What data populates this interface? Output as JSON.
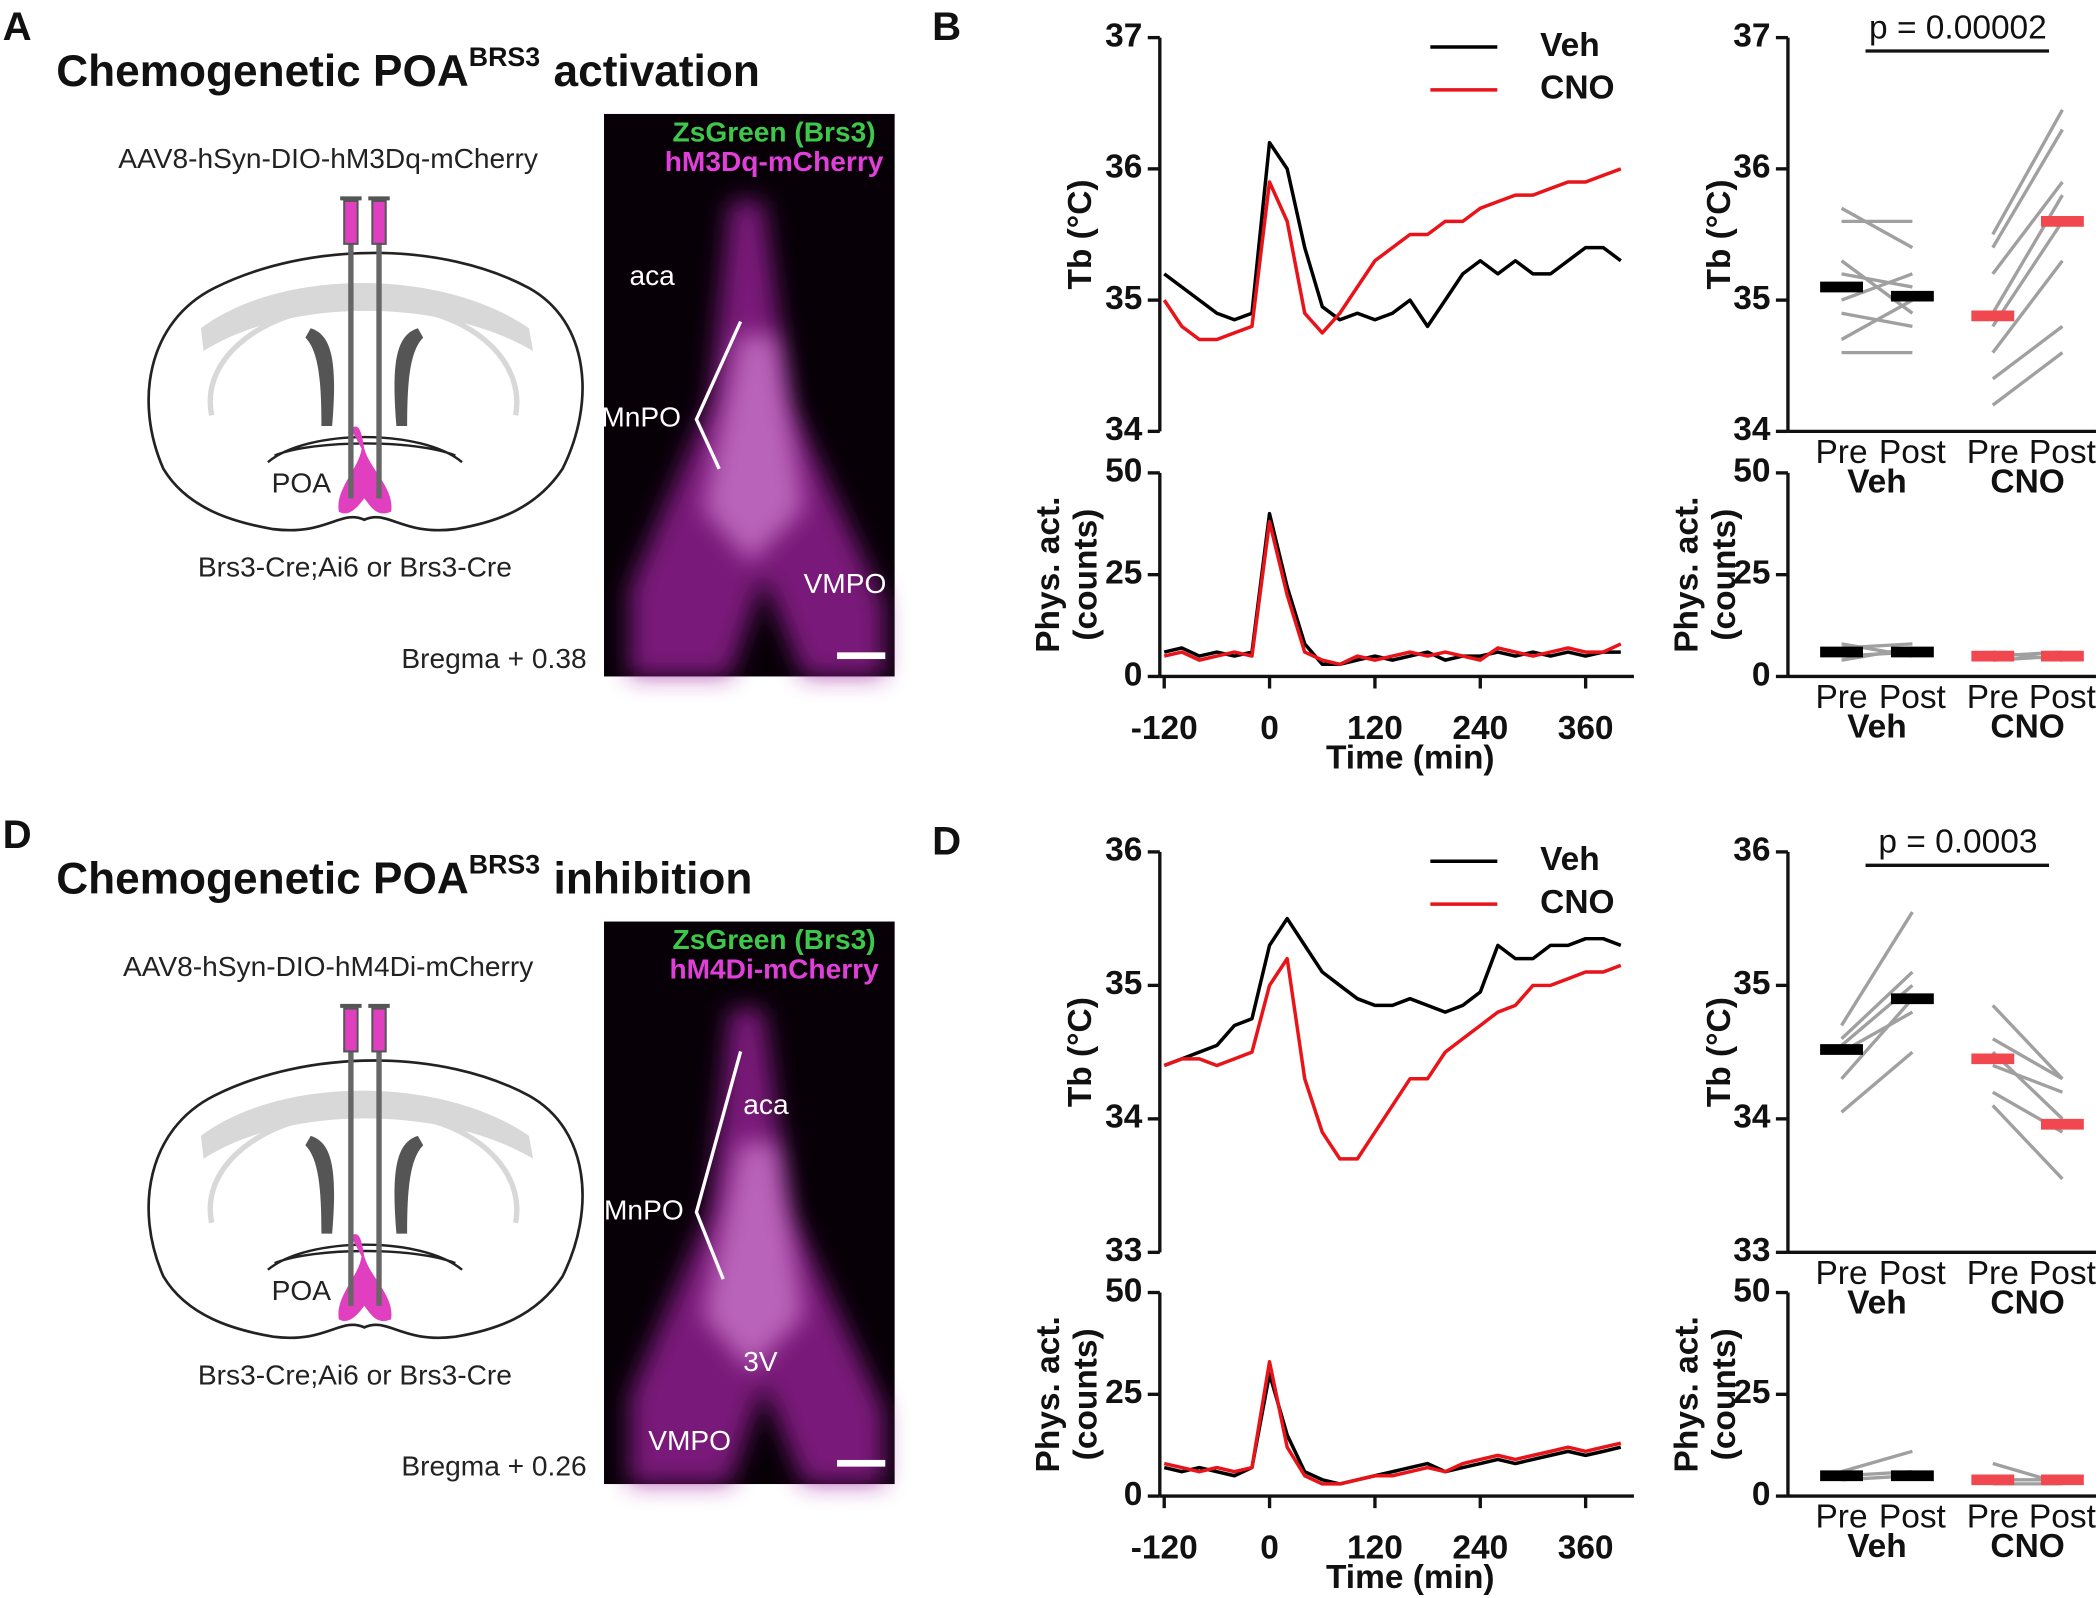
{
  "panels": [
    {
      "letter": "A",
      "title_main": "Chemogenetic POA",
      "title_sup": "BRS3",
      "title_end": "activation",
      "virus": "AAV8-hSyn-DIO-hM3Dq-mCherry",
      "region_label": "POA",
      "genotype": "Brs3-Cre;Ai6 or Brs3-Cre",
      "bregma": "Bregma + 0.38",
      "image_legend": [
        "ZsGreen (Brs3)",
        "hM3Dq-mCherry"
      ],
      "image_regions": [
        "aca",
        "MnPO",
        "VMPO"
      ]
    },
    {
      "letter": "D",
      "title_main": "Chemogenetic POA",
      "title_sup": "BRS3",
      "title_end": "inhibition",
      "virus": "AAV8-hSyn-DIO-hM4Di-mCherry",
      "region_label": "POA",
      "genotype": "Brs3-Cre;Ai6 or Brs3-Cre",
      "bregma": "Bregma + 0.26",
      "image_legend": [
        "ZsGreen (Brs3)",
        "hM4Di-mCherry"
      ],
      "image_regions": [
        "aca",
        "MnPO",
        "3V",
        "VMPO"
      ]
    }
  ],
  "chart_data": [
    {
      "type": "line",
      "panel_label": "B",
      "ylabel": "Tb (°C)",
      "x": [
        -120,
        -100,
        -80,
        -60,
        -40,
        -20,
        0,
        20,
        40,
        60,
        80,
        100,
        120,
        140,
        160,
        180,
        200,
        220,
        240,
        260,
        280,
        300,
        320,
        340,
        360,
        380,
        400
      ],
      "xlim": [
        -125,
        415
      ],
      "ylim": [
        34,
        37
      ],
      "yticks": [
        34,
        35,
        36,
        37
      ],
      "series": [
        {
          "name": "Veh",
          "color": "#000000",
          "values": [
            35.2,
            35.1,
            35.0,
            34.9,
            34.85,
            34.9,
            36.2,
            36.0,
            35.4,
            34.95,
            34.85,
            34.9,
            34.85,
            34.9,
            35.0,
            34.8,
            35.0,
            35.2,
            35.3,
            35.2,
            35.3,
            35.2,
            35.2,
            35.3,
            35.4,
            35.4,
            35.3
          ]
        },
        {
          "name": "CNO",
          "color": "#e8141a",
          "values": [
            35.0,
            34.8,
            34.7,
            34.7,
            34.75,
            34.8,
            35.9,
            35.6,
            34.9,
            34.75,
            34.9,
            35.1,
            35.3,
            35.4,
            35.5,
            35.5,
            35.6,
            35.6,
            35.7,
            35.75,
            35.8,
            35.8,
            35.85,
            35.9,
            35.9,
            35.95,
            36.0
          ]
        }
      ]
    },
    {
      "type": "line",
      "ylabel": [
        "Phys. act.",
        "(counts)"
      ],
      "xlabel": "Time (min)",
      "x": [
        -120,
        -100,
        -80,
        -60,
        -40,
        -20,
        0,
        20,
        40,
        60,
        80,
        100,
        120,
        140,
        160,
        180,
        200,
        220,
        240,
        260,
        280,
        300,
        320,
        340,
        360,
        380,
        400
      ],
      "xlim": [
        -125,
        415
      ],
      "xticks": [
        -120,
        0,
        120,
        240,
        360
      ],
      "ylim": [
        0,
        50
      ],
      "yticks": [
        0,
        25,
        50
      ],
      "series": [
        {
          "color": "#000000",
          "values": [
            6,
            7,
            5,
            6,
            5,
            6,
            40,
            22,
            8,
            3,
            3,
            4,
            5,
            4,
            5,
            6,
            4,
            5,
            5,
            6,
            5,
            6,
            5,
            6,
            5,
            6,
            6
          ]
        },
        {
          "color": "#e8141a",
          "values": [
            5,
            6,
            4,
            5,
            6,
            5,
            38,
            20,
            6,
            4,
            3,
            5,
            4,
            5,
            6,
            5,
            6,
            5,
            4,
            7,
            6,
            5,
            6,
            7,
            6,
            6,
            8
          ]
        }
      ]
    },
    {
      "type": "paired",
      "ylabel": "Tb (°C)",
      "ylim": [
        34,
        37
      ],
      "yticks": [
        34,
        35,
        36,
        37
      ],
      "conditions": [
        "Pre",
        "Post"
      ],
      "annotation": "p = 0.00002",
      "individual_color": "#a0a0a0",
      "groups": [
        {
          "name": "Veh",
          "color": "#000000",
          "mean": [
            35.1,
            35.03
          ],
          "individuals": [
            [
              35.7,
              35.4
            ],
            [
              35.6,
              35.6
            ],
            [
              35.3,
              34.9
            ],
            [
              35.2,
              35.1
            ],
            [
              35.0,
              35.2
            ],
            [
              34.9,
              34.8
            ],
            [
              34.7,
              35.0
            ],
            [
              34.6,
              34.6
            ]
          ]
        },
        {
          "name": "CNO",
          "color": "#f0484e",
          "mean": [
            34.88,
            35.6
          ],
          "individuals": [
            [
              35.5,
              36.45
            ],
            [
              35.4,
              36.3
            ],
            [
              35.2,
              35.9
            ],
            [
              34.9,
              35.8
            ],
            [
              34.8,
              35.6
            ],
            [
              34.6,
              35.3
            ],
            [
              34.4,
              34.8
            ],
            [
              34.2,
              34.6
            ]
          ]
        }
      ]
    },
    {
      "type": "paired",
      "ylabel": [
        "Phys. act.",
        "(counts)"
      ],
      "ylim": [
        0,
        50
      ],
      "yticks": [
        0,
        25,
        50
      ],
      "conditions": [
        "Pre",
        "Post"
      ],
      "individual_color": "#a0a0a0",
      "groups": [
        {
          "name": "Veh",
          "color": "#000000",
          "mean": [
            6,
            6
          ],
          "individuals": [
            [
              8,
              5
            ],
            [
              4,
              7
            ],
            [
              7,
              8
            ],
            [
              5,
              6
            ]
          ]
        },
        {
          "name": "CNO",
          "color": "#f0484e",
          "mean": [
            5,
            5
          ],
          "individuals": [
            [
              6,
              4
            ],
            [
              4,
              5
            ],
            [
              5,
              6
            ]
          ]
        }
      ]
    },
    {
      "type": "line",
      "panel_label": "D",
      "ylabel": "Tb (°C)",
      "x": [
        -120,
        -100,
        -80,
        -60,
        -40,
        -20,
        0,
        20,
        40,
        60,
        80,
        100,
        120,
        140,
        160,
        180,
        200,
        220,
        240,
        260,
        280,
        300,
        320,
        340,
        360,
        380,
        400
      ],
      "xlim": [
        -125,
        415
      ],
      "ylim": [
        33,
        36
      ],
      "yticks": [
        33,
        34,
        35,
        36
      ],
      "series": [
        {
          "name": "Veh",
          "color": "#000000",
          "values": [
            34.4,
            34.45,
            34.5,
            34.55,
            34.7,
            34.75,
            35.3,
            35.5,
            35.3,
            35.1,
            35.0,
            34.9,
            34.85,
            34.85,
            34.9,
            34.85,
            34.8,
            34.85,
            34.95,
            35.3,
            35.2,
            35.2,
            35.3,
            35.3,
            35.35,
            35.35,
            35.3
          ]
        },
        {
          "name": "CNO",
          "color": "#e8141a",
          "values": [
            34.4,
            34.45,
            34.45,
            34.4,
            34.45,
            34.5,
            35.0,
            35.2,
            34.3,
            33.9,
            33.7,
            33.7,
            33.9,
            34.1,
            34.3,
            34.3,
            34.5,
            34.6,
            34.7,
            34.8,
            34.85,
            35.0,
            35.0,
            35.05,
            35.1,
            35.1,
            35.15
          ]
        }
      ]
    },
    {
      "type": "line",
      "ylabel": [
        "Phys. act.",
        "(counts)"
      ],
      "xlabel": "Time (min)",
      "x": [
        -120,
        -100,
        -80,
        -60,
        -40,
        -20,
        0,
        20,
        40,
        60,
        80,
        100,
        120,
        140,
        160,
        180,
        200,
        220,
        240,
        260,
        280,
        300,
        320,
        340,
        360,
        380,
        400
      ],
      "xlim": [
        -125,
        415
      ],
      "xticks": [
        -120,
        0,
        120,
        240,
        360
      ],
      "ylim": [
        0,
        50
      ],
      "yticks": [
        0,
        25,
        50
      ],
      "series": [
        {
          "color": "#000000",
          "values": [
            7,
            6,
            7,
            6,
            5,
            7,
            30,
            15,
            6,
            4,
            3,
            4,
            5,
            6,
            7,
            8,
            6,
            7,
            8,
            9,
            8,
            9,
            10,
            11,
            10,
            11,
            12
          ]
        },
        {
          "color": "#e8141a",
          "values": [
            8,
            7,
            6,
            7,
            6,
            7,
            33,
            12,
            5,
            3,
            3,
            4,
            5,
            5,
            6,
            7,
            6,
            8,
            9,
            10,
            9,
            10,
            11,
            12,
            11,
            12,
            13
          ]
        }
      ]
    },
    {
      "type": "paired",
      "ylabel": "Tb (°C)",
      "ylim": [
        33,
        36
      ],
      "yticks": [
        33,
        34,
        35,
        36
      ],
      "conditions": [
        "Pre",
        "Post"
      ],
      "annotation": "p = 0.0003",
      "individual_color": "#a0a0a0",
      "groups": [
        {
          "name": "Veh",
          "color": "#000000",
          "mean": [
            34.52,
            34.9
          ],
          "individuals": [
            [
              34.7,
              35.55
            ],
            [
              34.6,
              35.1
            ],
            [
              34.55,
              35.0
            ],
            [
              34.5,
              34.8
            ],
            [
              34.3,
              34.9
            ],
            [
              34.05,
              34.5
            ]
          ]
        },
        {
          "name": "CNO",
          "color": "#f0484e",
          "mean": [
            34.45,
            33.96
          ],
          "individuals": [
            [
              34.85,
              34.3
            ],
            [
              34.6,
              34.3
            ],
            [
              34.5,
              34.0
            ],
            [
              34.4,
              34.2
            ],
            [
              34.2,
              33.9
            ],
            [
              34.1,
              33.55
            ]
          ]
        }
      ]
    },
    {
      "type": "paired",
      "ylabel": [
        "Phys. act.",
        "(counts)"
      ],
      "ylim": [
        0,
        50
      ],
      "yticks": [
        0,
        25,
        50
      ],
      "conditions": [
        "Pre",
        "Post"
      ],
      "individual_color": "#a0a0a0",
      "groups": [
        {
          "name": "Veh",
          "color": "#000000",
          "mean": [
            5,
            5
          ],
          "individuals": [
            [
              6,
              11
            ],
            [
              5,
              6
            ],
            [
              4,
              5
            ]
          ]
        },
        {
          "name": "CNO",
          "color": "#f0484e",
          "mean": [
            4,
            4
          ],
          "individuals": [
            [
              8,
              3
            ],
            [
              4,
              4
            ],
            [
              3,
              3
            ]
          ]
        }
      ]
    }
  ]
}
